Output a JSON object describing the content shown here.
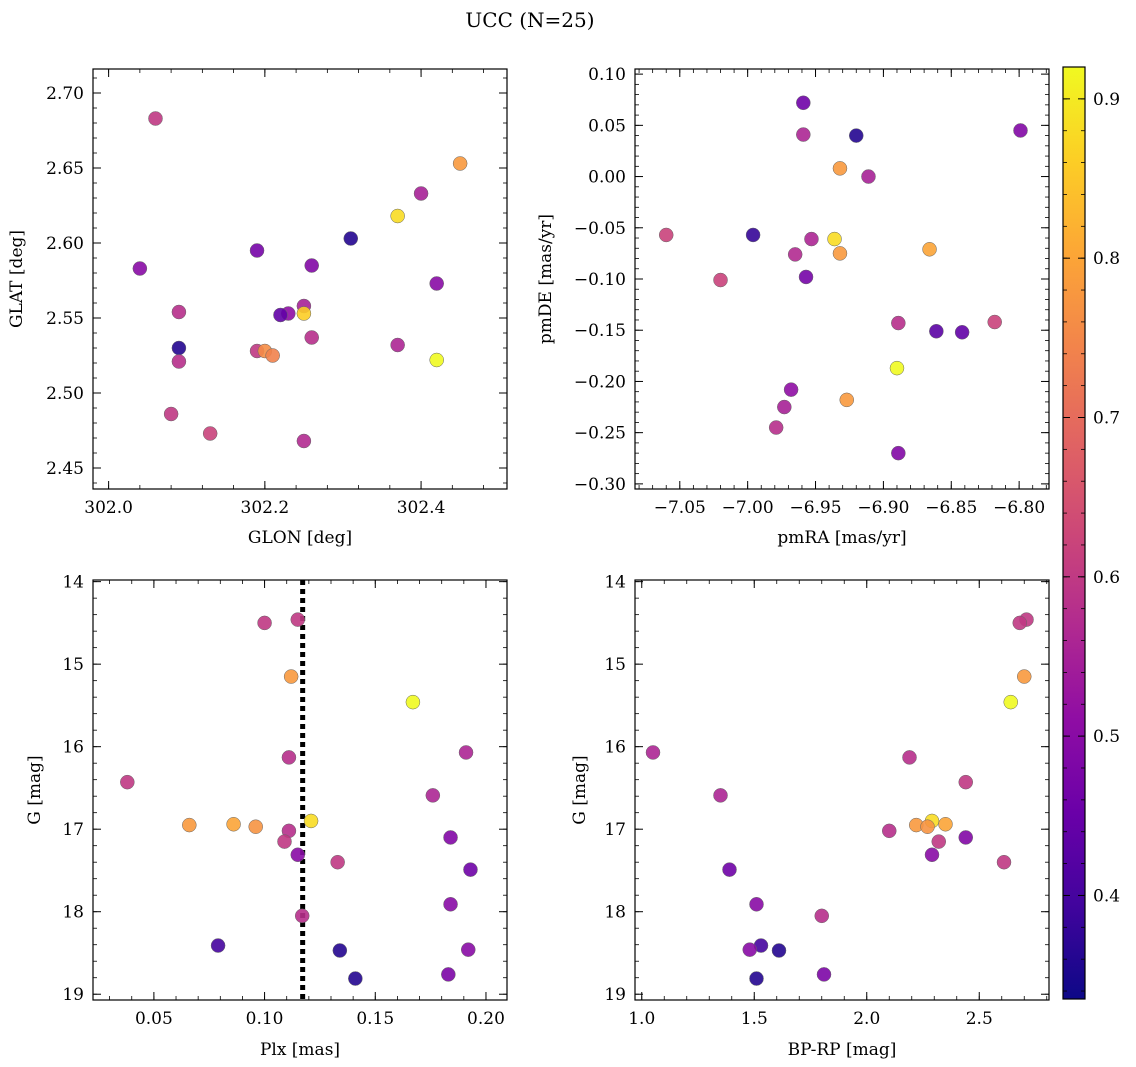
{
  "figure": {
    "title": "UCC (N=25)"
  },
  "colorbar": {
    "cmap": "plasma",
    "vmin": 0.335,
    "vmax": 0.92,
    "ticks": [
      0.4,
      0.5,
      0.6,
      0.7,
      0.8,
      0.9
    ],
    "tick_labels": [
      "0.4",
      "0.5",
      "0.6",
      "0.7",
      "0.8",
      "0.9"
    ]
  },
  "chart_data": [
    {
      "type": "scatter",
      "xlabel": "GLON [deg]",
      "ylabel": "GLAT [deg]",
      "xlim": [
        301.98,
        302.51
      ],
      "ylim": [
        2.436,
        2.716
      ],
      "xticks": [
        302.0,
        302.2,
        302.4
      ],
      "xtick_labels": [
        "302.0",
        "302.2",
        "302.4"
      ],
      "yticks": [
        2.45,
        2.5,
        2.55,
        2.6,
        2.65,
        2.7
      ],
      "ytick_labels": [
        "2.45",
        "2.50",
        "2.55",
        "2.60",
        "2.65",
        "2.70"
      ],
      "points": [
        {
          "x": 302.06,
          "y": 2.683,
          "c": 0.6
        },
        {
          "x": 302.45,
          "y": 2.653,
          "c": 0.78
        },
        {
          "x": 302.4,
          "y": 2.633,
          "c": 0.55
        },
        {
          "x": 302.37,
          "y": 2.618,
          "c": 0.88
        },
        {
          "x": 302.31,
          "y": 2.603,
          "c": 0.36
        },
        {
          "x": 302.19,
          "y": 2.595,
          "c": 0.47
        },
        {
          "x": 302.26,
          "y": 2.585,
          "c": 0.49
        },
        {
          "x": 302.04,
          "y": 2.583,
          "c": 0.5
        },
        {
          "x": 302.42,
          "y": 2.573,
          "c": 0.5
        },
        {
          "x": 302.25,
          "y": 2.558,
          "c": 0.55
        },
        {
          "x": 302.09,
          "y": 2.554,
          "c": 0.58
        },
        {
          "x": 302.23,
          "y": 2.553,
          "c": 0.51
        },
        {
          "x": 302.25,
          "y": 2.553,
          "c": 0.86
        },
        {
          "x": 302.22,
          "y": 2.552,
          "c": 0.44
        },
        {
          "x": 302.26,
          "y": 2.537,
          "c": 0.58
        },
        {
          "x": 302.37,
          "y": 2.532,
          "c": 0.56
        },
        {
          "x": 302.09,
          "y": 2.53,
          "c": 0.36
        },
        {
          "x": 302.19,
          "y": 2.528,
          "c": 0.6
        },
        {
          "x": 302.2,
          "y": 2.528,
          "c": 0.76
        },
        {
          "x": 302.21,
          "y": 2.525,
          "c": 0.74
        },
        {
          "x": 302.42,
          "y": 2.522,
          "c": 0.92
        },
        {
          "x": 302.09,
          "y": 2.521,
          "c": 0.58
        },
        {
          "x": 302.08,
          "y": 2.486,
          "c": 0.6
        },
        {
          "x": 302.13,
          "y": 2.473,
          "c": 0.62
        },
        {
          "x": 302.25,
          "y": 2.468,
          "c": 0.57
        }
      ]
    },
    {
      "type": "scatter",
      "xlabel": "pmRA [mas/yr]",
      "ylabel": "pmDE [mas/yr]",
      "xlim": [
        -7.083,
        -6.778
      ],
      "ylim": [
        -0.305,
        0.105
      ],
      "xticks": [
        -7.05,
        -7.0,
        -6.95,
        -6.9,
        -6.85,
        -6.8
      ],
      "xtick_labels": [
        "−7.05",
        "−7.00",
        "−6.95",
        "−6.90",
        "−6.85",
        "−6.80"
      ],
      "yticks": [
        -0.3,
        -0.25,
        -0.2,
        -0.15,
        -0.1,
        -0.05,
        0.0,
        0.05,
        0.1
      ],
      "ytick_labels": [
        "−0.30",
        "−0.25",
        "−0.20",
        "−0.15",
        "−0.10",
        "−0.05",
        "0.00",
        "0.05",
        "0.10"
      ],
      "points": [
        {
          "x": -6.959,
          "y": 0.072,
          "c": 0.46
        },
        {
          "x": -6.959,
          "y": 0.041,
          "c": 0.56
        },
        {
          "x": -6.92,
          "y": 0.04,
          "c": 0.36
        },
        {
          "x": -6.799,
          "y": 0.045,
          "c": 0.49
        },
        {
          "x": -6.932,
          "y": 0.008,
          "c": 0.78
        },
        {
          "x": -6.911,
          "y": 0.0,
          "c": 0.55
        },
        {
          "x": -7.06,
          "y": -0.057,
          "c": 0.62
        },
        {
          "x": -6.996,
          "y": -0.057,
          "c": 0.38
        },
        {
          "x": -6.936,
          "y": -0.061,
          "c": 0.88
        },
        {
          "x": -6.953,
          "y": -0.061,
          "c": 0.56
        },
        {
          "x": -6.866,
          "y": -0.071,
          "c": 0.8
        },
        {
          "x": -6.965,
          "y": -0.076,
          "c": 0.57
        },
        {
          "x": -6.932,
          "y": -0.075,
          "c": 0.78
        },
        {
          "x": -7.02,
          "y": -0.101,
          "c": 0.62
        },
        {
          "x": -6.957,
          "y": -0.098,
          "c": 0.47
        },
        {
          "x": -6.818,
          "y": -0.142,
          "c": 0.62
        },
        {
          "x": -6.889,
          "y": -0.143,
          "c": 0.58
        },
        {
          "x": -6.861,
          "y": -0.151,
          "c": 0.43
        },
        {
          "x": -6.842,
          "y": -0.152,
          "c": 0.44
        },
        {
          "x": -6.89,
          "y": -0.187,
          "c": 0.92
        },
        {
          "x": -6.968,
          "y": -0.208,
          "c": 0.51
        },
        {
          "x": -6.927,
          "y": -0.218,
          "c": 0.78
        },
        {
          "x": -6.973,
          "y": -0.225,
          "c": 0.55
        },
        {
          "x": -6.979,
          "y": -0.245,
          "c": 0.58
        },
        {
          "x": -6.889,
          "y": -0.27,
          "c": 0.49
        }
      ]
    },
    {
      "type": "scatter",
      "xlabel": "Plx [mas]",
      "ylabel": "G [mag]",
      "xlim": [
        0.0225,
        0.2095
      ],
      "ylim": [
        19.07,
        13.98
      ],
      "y_inverted": true,
      "xticks": [
        0.05,
        0.1,
        0.15,
        0.2
      ],
      "xtick_labels": [
        "0.05",
        "0.10",
        "0.15",
        "0.20"
      ],
      "yticks": [
        14,
        15,
        16,
        17,
        18,
        19
      ],
      "ytick_labels": [
        "14",
        "15",
        "16",
        "17",
        "18",
        "19"
      ],
      "vline": {
        "x": 0.1172,
        "style": "dotted",
        "color": "#000000"
      },
      "points": [
        {
          "x": 0.115,
          "y": 14.46,
          "c": 0.6
        },
        {
          "x": 0.1,
          "y": 14.5,
          "c": 0.6
        },
        {
          "x": 0.112,
          "y": 15.15,
          "c": 0.78
        },
        {
          "x": 0.167,
          "y": 15.46,
          "c": 0.92
        },
        {
          "x": 0.191,
          "y": 16.07,
          "c": 0.56
        },
        {
          "x": 0.111,
          "y": 16.13,
          "c": 0.58
        },
        {
          "x": 0.038,
          "y": 16.43,
          "c": 0.6
        },
        {
          "x": 0.176,
          "y": 16.59,
          "c": 0.56
        },
        {
          "x": 0.121,
          "y": 16.9,
          "c": 0.88
        },
        {
          "x": 0.086,
          "y": 16.94,
          "c": 0.8
        },
        {
          "x": 0.066,
          "y": 16.95,
          "c": 0.78
        },
        {
          "x": 0.096,
          "y": 16.97,
          "c": 0.77
        },
        {
          "x": 0.111,
          "y": 17.02,
          "c": 0.58
        },
        {
          "x": 0.184,
          "y": 17.1,
          "c": 0.49
        },
        {
          "x": 0.109,
          "y": 17.15,
          "c": 0.6
        },
        {
          "x": 0.115,
          "y": 17.31,
          "c": 0.5
        },
        {
          "x": 0.133,
          "y": 17.4,
          "c": 0.6
        },
        {
          "x": 0.193,
          "y": 17.49,
          "c": 0.46
        },
        {
          "x": 0.184,
          "y": 17.91,
          "c": 0.5
        },
        {
          "x": 0.117,
          "y": 18.05,
          "c": 0.58
        },
        {
          "x": 0.079,
          "y": 18.41,
          "c": 0.4
        },
        {
          "x": 0.134,
          "y": 18.47,
          "c": 0.36
        },
        {
          "x": 0.192,
          "y": 18.46,
          "c": 0.5
        },
        {
          "x": 0.183,
          "y": 18.76,
          "c": 0.48
        },
        {
          "x": 0.141,
          "y": 18.81,
          "c": 0.36
        }
      ]
    },
    {
      "type": "scatter",
      "xlabel": "BP-RP [mag]",
      "ylabel": "G [mag]",
      "xlim": [
        0.97,
        2.81
      ],
      "ylim": [
        19.07,
        13.98
      ],
      "y_inverted": true,
      "xticks": [
        1.0,
        1.5,
        2.0,
        2.5
      ],
      "xtick_labels": [
        "1.0",
        "1.5",
        "2.0",
        "2.5"
      ],
      "yticks": [
        14,
        15,
        16,
        17,
        18,
        19
      ],
      "ytick_labels": [
        "14",
        "15",
        "16",
        "17",
        "18",
        "19"
      ],
      "points": [
        {
          "x": 2.71,
          "y": 14.46,
          "c": 0.6
        },
        {
          "x": 2.68,
          "y": 14.5,
          "c": 0.6
        },
        {
          "x": 2.7,
          "y": 15.15,
          "c": 0.78
        },
        {
          "x": 2.64,
          "y": 15.46,
          "c": 0.92
        },
        {
          "x": 1.05,
          "y": 16.07,
          "c": 0.56
        },
        {
          "x": 2.19,
          "y": 16.13,
          "c": 0.58
        },
        {
          "x": 2.44,
          "y": 16.43,
          "c": 0.6
        },
        {
          "x": 1.35,
          "y": 16.59,
          "c": 0.56
        },
        {
          "x": 2.29,
          "y": 16.9,
          "c": 0.88
        },
        {
          "x": 2.35,
          "y": 16.94,
          "c": 0.8
        },
        {
          "x": 2.22,
          "y": 16.95,
          "c": 0.78
        },
        {
          "x": 2.27,
          "y": 16.97,
          "c": 0.77
        },
        {
          "x": 2.1,
          "y": 17.02,
          "c": 0.58
        },
        {
          "x": 2.44,
          "y": 17.1,
          "c": 0.49
        },
        {
          "x": 2.32,
          "y": 17.15,
          "c": 0.6
        },
        {
          "x": 2.29,
          "y": 17.31,
          "c": 0.5
        },
        {
          "x": 2.61,
          "y": 17.4,
          "c": 0.6
        },
        {
          "x": 1.39,
          "y": 17.49,
          "c": 0.46
        },
        {
          "x": 1.51,
          "y": 17.91,
          "c": 0.5
        },
        {
          "x": 1.8,
          "y": 18.05,
          "c": 0.58
        },
        {
          "x": 1.53,
          "y": 18.41,
          "c": 0.4
        },
        {
          "x": 1.61,
          "y": 18.47,
          "c": 0.36
        },
        {
          "x": 1.48,
          "y": 18.46,
          "c": 0.5
        },
        {
          "x": 1.81,
          "y": 18.76,
          "c": 0.48
        },
        {
          "x": 1.51,
          "y": 18.81,
          "c": 0.36
        }
      ]
    }
  ]
}
